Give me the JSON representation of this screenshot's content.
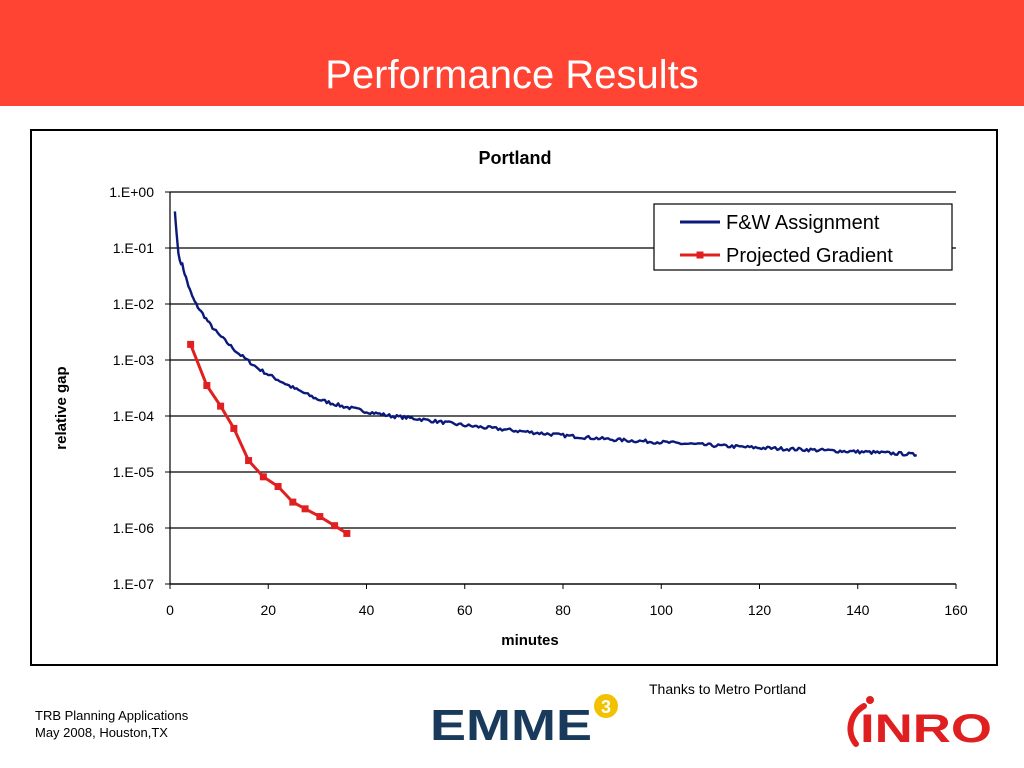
{
  "slide": {
    "title": "Performance Results",
    "credit": "Thanks to Metro Portland",
    "footer_line1": "TRB Planning Applications",
    "footer_line2": "May 2008, Houston,TX",
    "header_color": "#ff4433"
  },
  "logos": [
    {
      "name": "emme-logo",
      "text": "EMME",
      "superscript": "3",
      "color": "#1a3a5c",
      "badge_color": "#f2c200"
    },
    {
      "name": "inro-logo",
      "text": "INRO",
      "color": "#e02020"
    }
  ],
  "chart_data": {
    "type": "line",
    "title": "Portland",
    "xlabel": "minutes",
    "ylabel": "relative gap",
    "xlim": [
      0,
      160
    ],
    "ylim": [
      1e-07,
      1
    ],
    "yscale": "log",
    "xticks": [
      0,
      20,
      40,
      60,
      80,
      100,
      120,
      140,
      160
    ],
    "yticks": [
      1,
      0.1,
      0.01,
      0.001,
      0.0001,
      1e-05,
      1e-06,
      1e-07
    ],
    "xtick_labels": [
      "0",
      "20",
      "40",
      "60",
      "80",
      "100",
      "120",
      "140",
      "160"
    ],
    "ytick_labels": [
      "1.E+00",
      "1.E-01",
      "1.E-02",
      "1.E-03",
      "1.E-04",
      "1.E-05",
      "1.E-06",
      "1.E-07"
    ],
    "grid": "horizontal",
    "legend_position": "top-right",
    "series": [
      {
        "name": "F&W Assignment",
        "color": "#0b1a7a",
        "marker": "none",
        "x": [
          1,
          1.3,
          1.7,
          2,
          2.5,
          3,
          3.5,
          4,
          4.5,
          5,
          6,
          7,
          8,
          9,
          10,
          12,
          14,
          16,
          18,
          20,
          25,
          30,
          35,
          40,
          45,
          50,
          60,
          70,
          80,
          90,
          100,
          110,
          120,
          130,
          140,
          150,
          152
        ],
        "y": [
          0.45,
          0.2,
          0.08,
          0.06,
          0.05,
          0.035,
          0.025,
          0.018,
          0.014,
          0.011,
          0.008,
          0.006,
          0.0045,
          0.0035,
          0.0028,
          0.0019,
          0.0013,
          0.00095,
          0.0007,
          0.00055,
          0.00032,
          0.0002,
          0.00015,
          0.00012,
          0.0001,
          9e-05,
          6.8e-05,
          5.5e-05,
          4.5e-05,
          3.8e-05,
          3.4e-05,
          3e-05,
          2.7e-05,
          2.5e-05,
          2.3e-05,
          2.1e-05,
          2e-05
        ]
      },
      {
        "name": "Projected Gradient",
        "color": "#e02020",
        "marker": "square",
        "x": [
          4.2,
          7.5,
          10.3,
          13,
          16,
          19,
          22,
          25,
          27.5,
          30.5,
          33.5,
          36
        ],
        "y": [
          0.0019,
          0.00035,
          0.00015,
          6e-05,
          1.6e-05,
          8.2e-06,
          5.5e-06,
          2.9e-06,
          2.2e-06,
          1.6e-06,
          1.1e-06,
          8e-07
        ]
      }
    ]
  }
}
